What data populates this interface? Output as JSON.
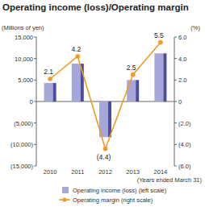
{
  "chart_data": {
    "type": "bar",
    "title": "Operating income (loss)/Operating margin",
    "y_label": "(Millions of yen)",
    "y2_label": "(%)",
    "x_label": "(Years ended March 31)",
    "categories": [
      "2010",
      "2011",
      "2012",
      "2013",
      "2014"
    ],
    "series": [
      {
        "name": "Operating income (loss) (left scale)",
        "type": "bar",
        "color": "#a6a6d9",
        "values": [
          4300,
          8800,
          -8300,
          5000,
          11200
        ]
      },
      {
        "name": "Operating margin (right scale)",
        "type": "line",
        "color": "#f29a26",
        "marker": "circle",
        "axis": "y2",
        "values": [
          2.1,
          4.2,
          -4.4,
          2.5,
          5.5
        ],
        "value_labels": [
          "2.1",
          "4.2",
          "(4.4)",
          "2.5",
          "5.5"
        ]
      }
    ],
    "ylim": [
      -15000,
      15000
    ],
    "yticks": [
      {
        "value": 15000,
        "label": "15,000"
      },
      {
        "value": 10000,
        "label": "10,000"
      },
      {
        "value": 5000,
        "label": "5,000"
      },
      0,
      {
        "value": -5000,
        "label": "(5,000)"
      },
      {
        "value": -10000,
        "label": "(10,000)"
      },
      {
        "value": -15000,
        "label": "(15,000)"
      }
    ],
    "y2lim": [
      -6,
      6
    ],
    "y2ticks": [
      {
        "value": 6,
        "label": "6.0"
      },
      {
        "value": 4,
        "label": "4.0"
      },
      {
        "value": 2,
        "label": "2.0"
      },
      0,
      {
        "value": -2,
        "label": "(2.0)"
      },
      {
        "value": -4,
        "label": "(4.0)"
      },
      {
        "value": -6,
        "label": "(6.0)"
      }
    ],
    "grid": false,
    "data_labels": true,
    "legend": "bottom"
  }
}
